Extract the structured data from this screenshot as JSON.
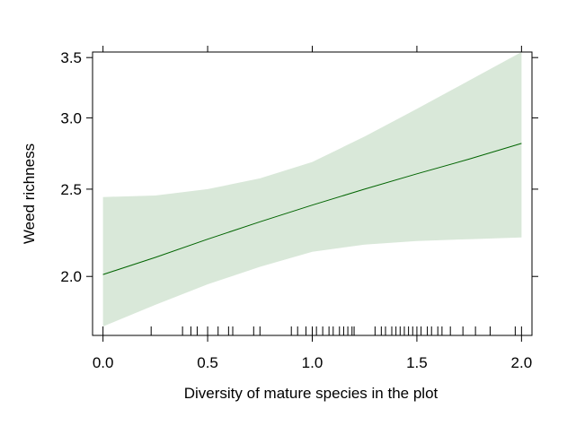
{
  "chart_data": {
    "type": "line",
    "title": "",
    "xlabel": "Diversity of mature species in the plot",
    "ylabel": "Weed richness",
    "xlim": [
      -0.05,
      2.05
    ],
    "ylim": [
      1.72,
      3.55
    ],
    "y_scale": "log",
    "grid": false,
    "x_ticks": [
      0.0,
      0.5,
      1.0,
      1.5,
      2.0
    ],
    "x_tick_labels": [
      "0.0",
      "0.5",
      "1.0",
      "1.5",
      "2.0"
    ],
    "y_ticks": [
      2.0,
      2.5,
      3.0,
      3.5
    ],
    "y_tick_labels": [
      "2.0",
      "2.5",
      "3.0",
      "3.5"
    ],
    "series": [
      {
        "line_color": "#006400",
        "band_color": "#d9e8d9",
        "x": [
          0.0,
          0.25,
          0.5,
          0.75,
          1.0,
          1.25,
          1.5,
          1.75,
          2.0
        ],
        "fit": [
          2.01,
          2.1,
          2.2,
          2.3,
          2.4,
          2.5,
          2.6,
          2.7,
          2.81
        ],
        "lower": [
          1.76,
          1.86,
          1.96,
          2.05,
          2.13,
          2.17,
          2.19,
          2.2,
          2.21
        ],
        "upper": [
          2.45,
          2.46,
          2.5,
          2.57,
          2.68,
          2.86,
          3.07,
          3.3,
          3.55
        ]
      }
    ],
    "rug_x": [
      0.0,
      0.23,
      0.38,
      0.42,
      0.45,
      0.5,
      0.55,
      0.6,
      0.62,
      0.72,
      0.75,
      0.9,
      0.93,
      0.97,
      1.0,
      1.02,
      1.05,
      1.08,
      1.1,
      1.13,
      1.15,
      1.17,
      1.19,
      1.2,
      1.3,
      1.33,
      1.35,
      1.38,
      1.4,
      1.42,
      1.44,
      1.46,
      1.48,
      1.5,
      1.52,
      1.55,
      1.57,
      1.6,
      1.62,
      1.66,
      1.72,
      1.78,
      1.85,
      1.97,
      2.0
    ]
  }
}
